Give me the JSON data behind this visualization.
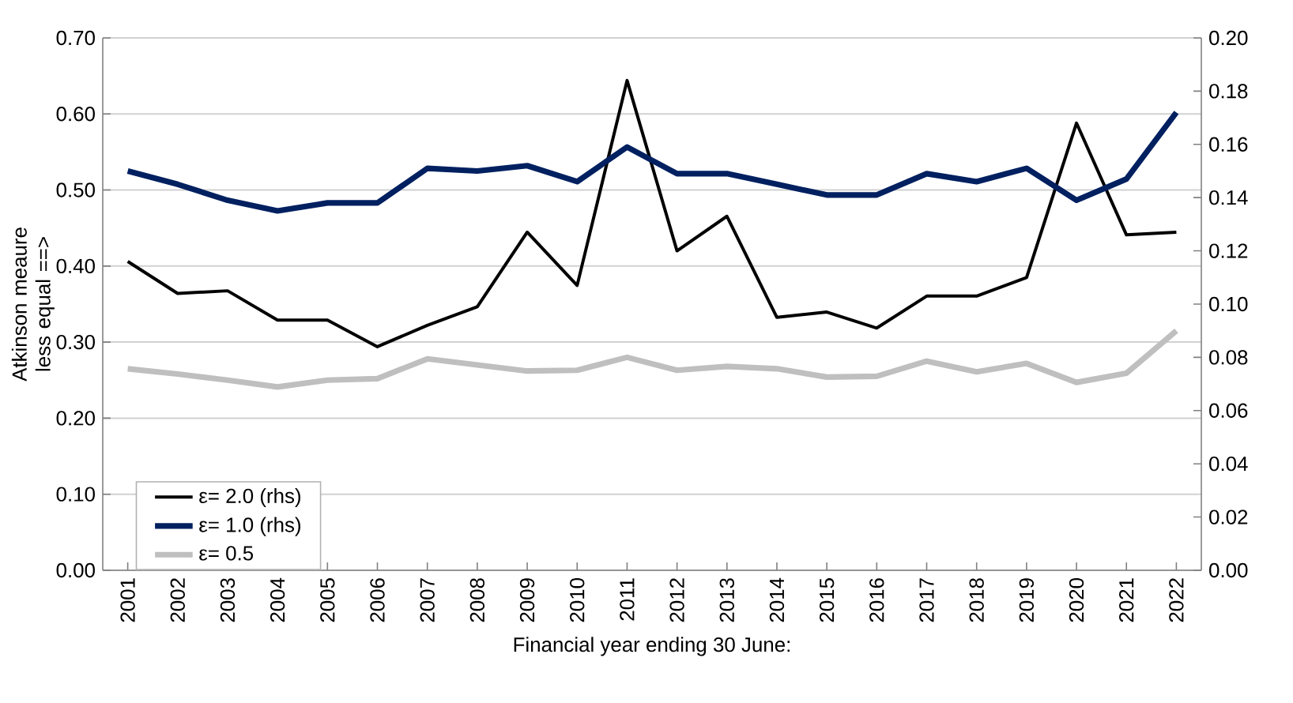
{
  "chart_data": {
    "type": "line",
    "xlabel": "Financial year ending 30 June:",
    "ylabel": "Atkinson meaure less equal ==>",
    "categories": [
      "2001",
      "2002",
      "2003",
      "2004",
      "2005",
      "2006",
      "2007",
      "2008",
      "2009",
      "2010",
      "2011",
      "2012",
      "2013",
      "2014",
      "2015",
      "2016",
      "2017",
      "2018",
      "2019",
      "2020",
      "2021",
      "2022"
    ],
    "series": [
      {
        "name": "ε= 2.0 (rhs)",
        "color": "#000000",
        "axis": "y2",
        "values": [
          0.116,
          0.104,
          0.105,
          0.094,
          0.094,
          0.084,
          0.092,
          0.099,
          0.127,
          0.107,
          0.184,
          0.12,
          0.133,
          0.095,
          0.097,
          0.091,
          0.103,
          0.103,
          0.11,
          0.168,
          0.126,
          0.127
        ]
      },
      {
        "name": "ε= 1.0 (rhs)",
        "color": "#002060",
        "axis": "y2",
        "values": [
          0.15,
          0.145,
          0.139,
          0.135,
          0.138,
          0.138,
          0.151,
          0.15,
          0.152,
          0.146,
          0.159,
          0.149,
          0.149,
          0.145,
          0.141,
          0.141,
          0.149,
          0.146,
          0.151,
          0.139,
          0.147,
          0.172
        ]
      },
      {
        "name": "ε= 0.5",
        "color": "#bfbfbf",
        "values": [
          0.265,
          0.258,
          0.25,
          0.241,
          0.25,
          0.252,
          0.278,
          0.27,
          0.262,
          0.263,
          0.28,
          0.263,
          0.268,
          0.265,
          0.254,
          0.255,
          0.275,
          0.261,
          0.272,
          0.247,
          0.259,
          0.315
        ]
      }
    ],
    "ylim": [
      0,
      0.7
    ],
    "yticks": [
      {
        "value": 0,
        "label": "0.00"
      },
      {
        "value": 0.1,
        "label": "0.10"
      },
      {
        "value": 0.2,
        "label": "0.20"
      },
      {
        "value": 0.3,
        "label": "0.30"
      },
      {
        "value": 0.4,
        "label": "0.40"
      },
      {
        "value": 0.5,
        "label": "0.50"
      },
      {
        "value": 0.6,
        "label": "0.60"
      },
      {
        "value": 0.7,
        "label": "0.70"
      }
    ],
    "y2lim": [
      0,
      0.2
    ],
    "y2ticks": [
      {
        "value": 0,
        "label": "0.00"
      },
      {
        "value": 0.02,
        "label": "0.02"
      },
      {
        "value": 0.04,
        "label": "0.04"
      },
      {
        "value": 0.06,
        "label": "0.06"
      },
      {
        "value": 0.08,
        "label": "0.08"
      },
      {
        "value": 0.1,
        "label": "0.10"
      },
      {
        "value": 0.12,
        "label": "0.12"
      },
      {
        "value": 0.14,
        "label": "0.14"
      },
      {
        "value": 0.16,
        "label": "0.16"
      },
      {
        "value": 0.18,
        "label": "0.18"
      },
      {
        "value": 0.2,
        "label": "0.20"
      }
    ],
    "grid": "y",
    "legend": "bottom left"
  }
}
